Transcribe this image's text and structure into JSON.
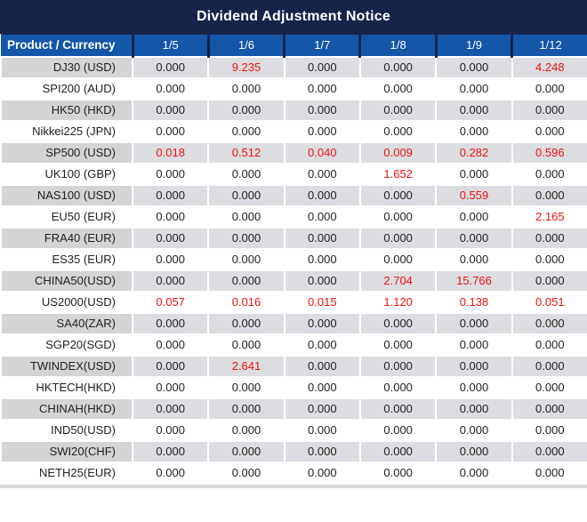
{
  "title": "Dividend Adjustment Notice",
  "colors": {
    "title_bar_navy": "#16234a",
    "header_blue": "#1456a8",
    "row_gray_label": "#d2d4d6",
    "row_gray_data": "#dcdde0",
    "red_value": "#ee1111",
    "text": "#212121",
    "bottom_strip": "#d8dadc"
  },
  "table": {
    "columns": [
      "Product / Currency",
      "1/5",
      "1/6",
      "1/7",
      "1/8",
      "1/9",
      "1/12"
    ],
    "rows": [
      {
        "label": "DJ30 (USD)",
        "values": [
          "0.000",
          "9.235",
          "0.000",
          "0.000",
          "0.000",
          "4.248"
        ],
        "red": [
          1,
          5
        ]
      },
      {
        "label": "SPI200 (AUD)",
        "values": [
          "0.000",
          "0.000",
          "0.000",
          "0.000",
          "0.000",
          "0.000"
        ],
        "red": []
      },
      {
        "label": "HK50 (HKD)",
        "values": [
          "0.000",
          "0.000",
          "0.000",
          "0.000",
          "0.000",
          "0.000"
        ],
        "red": []
      },
      {
        "label": "Nikkei225 (JPN)",
        "values": [
          "0.000",
          "0.000",
          "0.000",
          "0.000",
          "0.000",
          "0.000"
        ],
        "red": []
      },
      {
        "label": "SP500 (USD)",
        "values": [
          "0.018",
          "0.512",
          "0.040",
          "0.009",
          "0.282",
          "0.596"
        ],
        "red": [
          0,
          1,
          2,
          3,
          4,
          5
        ]
      },
      {
        "label": "UK100 (GBP)",
        "values": [
          "0.000",
          "0.000",
          "0.000",
          "1.652",
          "0.000",
          "0.000"
        ],
        "red": [
          3
        ]
      },
      {
        "label": "NAS100 (USD)",
        "values": [
          "0.000",
          "0.000",
          "0.000",
          "0.000",
          "0.559",
          "0.000"
        ],
        "red": [
          4
        ]
      },
      {
        "label": "EU50 (EUR)",
        "values": [
          "0.000",
          "0.000",
          "0.000",
          "0.000",
          "0.000",
          "2.165"
        ],
        "red": [
          5
        ]
      },
      {
        "label": "FRA40 (EUR)",
        "values": [
          "0.000",
          "0.000",
          "0.000",
          "0.000",
          "0.000",
          "0.000"
        ],
        "red": []
      },
      {
        "label": "ES35 (EUR)",
        "values": [
          "0.000",
          "0.000",
          "0.000",
          "0.000",
          "0.000",
          "0.000"
        ],
        "red": []
      },
      {
        "label": "CHINA50(USD)",
        "values": [
          "0.000",
          "0.000",
          "0.000",
          "2.704",
          "15.766",
          "0.000"
        ],
        "red": [
          3,
          4
        ]
      },
      {
        "label": "US2000(USD)",
        "values": [
          "0.057",
          "0.016",
          "0.015",
          "1.120",
          "0.138",
          "0.051"
        ],
        "red": [
          0,
          1,
          2,
          3,
          4,
          5
        ]
      },
      {
        "label": "SA40(ZAR)",
        "values": [
          "0.000",
          "0.000",
          "0.000",
          "0.000",
          "0.000",
          "0.000"
        ],
        "red": []
      },
      {
        "label": "SGP20(SGD)",
        "values": [
          "0.000",
          "0.000",
          "0.000",
          "0.000",
          "0.000",
          "0.000"
        ],
        "red": []
      },
      {
        "label": "TWINDEX(USD)",
        "values": [
          "0.000",
          "2.641",
          "0.000",
          "0.000",
          "0.000",
          "0.000"
        ],
        "red": [
          1
        ]
      },
      {
        "label": "HKTECH(HKD)",
        "values": [
          "0.000",
          "0.000",
          "0.000",
          "0.000",
          "0.000",
          "0.000"
        ],
        "red": []
      },
      {
        "label": "CHINAH(HKD)",
        "values": [
          "0.000",
          "0.000",
          "0.000",
          "0.000",
          "0.000",
          "0.000"
        ],
        "red": []
      },
      {
        "label": "IND50(USD)",
        "values": [
          "0.000",
          "0.000",
          "0.000",
          "0.000",
          "0.000",
          "0.000"
        ],
        "red": []
      },
      {
        "label": "SWI20(CHF)",
        "values": [
          "0.000",
          "0.000",
          "0.000",
          "0.000",
          "0.000",
          "0.000"
        ],
        "red": []
      },
      {
        "label": "NETH25(EUR)",
        "values": [
          "0.000",
          "0.000",
          "0.000",
          "0.000",
          "0.000",
          "0.000"
        ],
        "red": []
      }
    ]
  }
}
